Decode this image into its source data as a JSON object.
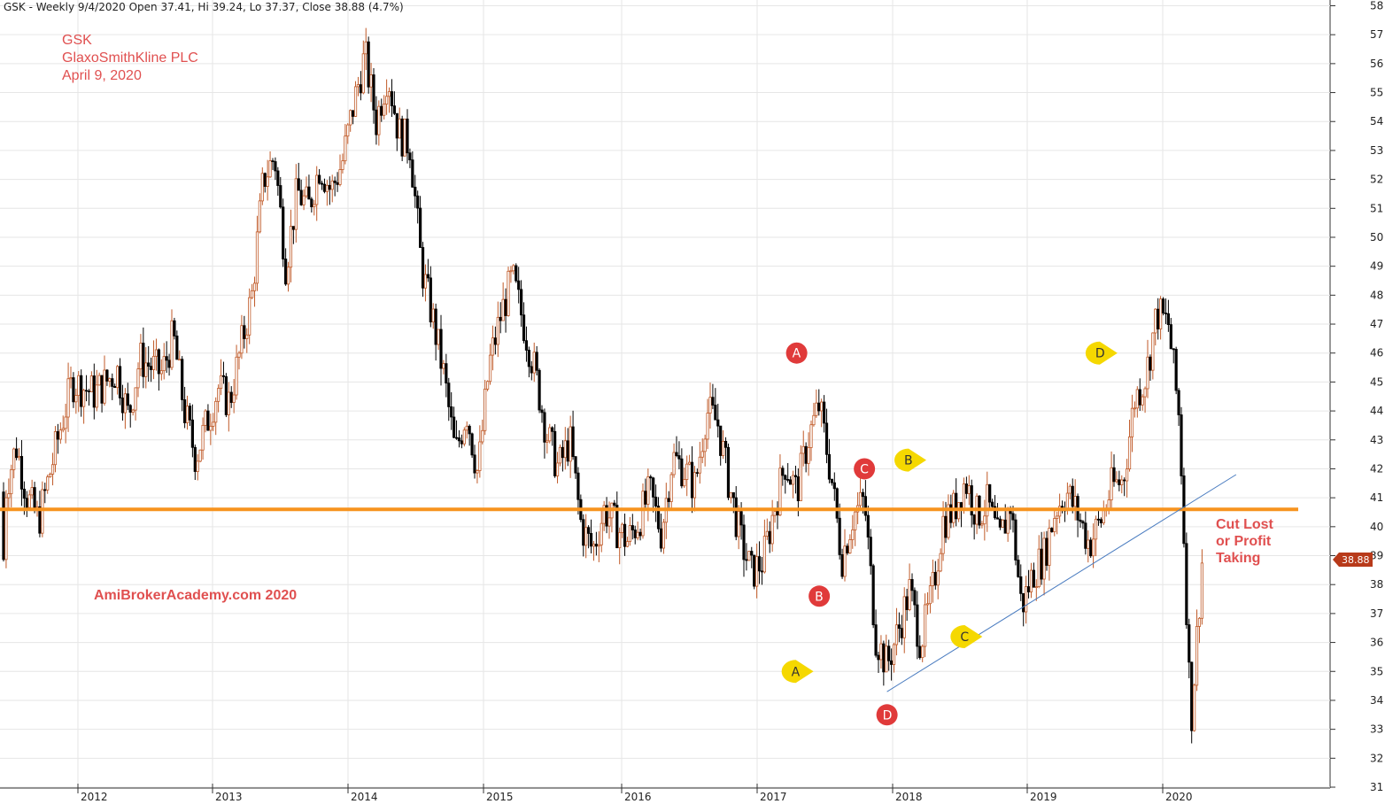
{
  "header": "GSK - Weekly 9/4/2020 Open 37.41, Hi 39.24, Lo 37.37, Close 38.88 (4.7%)",
  "title_lines": [
    "GSK",
    "GlaxoSmithKline PLC",
    "April 9, 2020"
  ],
  "watermark": "AmiBrokerAcademy.com   2020",
  "note_lines": [
    "Cut Lost",
    "or Profit",
    "Taking"
  ],
  "price_label": "38.88",
  "colors": {
    "up": "#c05a28",
    "down": "#000000",
    "support": "#f7931e",
    "trend": "#4a7cc0",
    "red_marker": "#e03a3a",
    "yellow_marker": "#f5d800",
    "price_tag": "#b83a1a"
  },
  "chart_data": {
    "type": "candlestick",
    "timeframe": "weekly",
    "ylim": [
      31,
      58
    ],
    "y_ticks": [
      31,
      32,
      33,
      34,
      35,
      36,
      37,
      38,
      39,
      40,
      41,
      42,
      43,
      44,
      45,
      46,
      47,
      48,
      49,
      50,
      51,
      52,
      53,
      54,
      55,
      56,
      57,
      58
    ],
    "x_ticks": [
      "2012",
      "2013",
      "2014",
      "2015",
      "2016",
      "2017",
      "2018",
      "2019",
      "2020"
    ],
    "grid": true,
    "series": [
      {
        "ohlc_keypoints": [
          [
            "2011-06",
            41.2
          ],
          [
            "2011-07",
            42.8
          ],
          [
            "2011-08",
            41.0
          ],
          [
            "2011-09",
            40.2
          ],
          [
            "2011-11",
            43.5
          ],
          [
            "2011-12",
            45.0
          ],
          [
            "2012-02",
            44.6
          ],
          [
            "2012-04",
            45.4
          ],
          [
            "2012-05",
            43.8
          ],
          [
            "2012-06",
            45.8
          ],
          [
            "2012-08",
            45.3
          ],
          [
            "2012-09",
            46.6
          ],
          [
            "2012-10",
            44.0
          ],
          [
            "2012-11",
            42.4
          ],
          [
            "2013-01",
            44.8
          ],
          [
            "2013-02",
            44.3
          ],
          [
            "2013-04",
            48.0
          ],
          [
            "2013-05",
            52.0
          ],
          [
            "2013-06",
            52.8
          ],
          [
            "2013-07",
            49.0
          ],
          [
            "2013-08",
            51.6
          ],
          [
            "2013-09",
            51.0
          ],
          [
            "2013-10",
            52.5
          ],
          [
            "2013-11",
            51.6
          ],
          [
            "2013-12",
            52.6
          ],
          [
            "2014-01",
            54.6
          ],
          [
            "2014-02",
            56.3
          ],
          [
            "2014-03",
            54.0
          ],
          [
            "2014-04",
            55.7
          ],
          [
            "2014-05",
            53.6
          ],
          [
            "2014-06",
            53.2
          ],
          [
            "2014-07",
            49.0
          ],
          [
            "2014-08",
            47.2
          ],
          [
            "2014-09",
            45.2
          ],
          [
            "2014-10",
            42.5
          ],
          [
            "2014-11",
            44.0
          ],
          [
            "2014-12",
            41.8
          ],
          [
            "2015-01",
            45.6
          ],
          [
            "2015-02",
            47.3
          ],
          [
            "2015-03",
            48.6
          ],
          [
            "2015-04",
            47.0
          ],
          [
            "2015-05",
            45.3
          ],
          [
            "2015-06",
            43.2
          ],
          [
            "2015-07",
            42.0
          ],
          [
            "2015-08",
            43.0
          ],
          [
            "2015-09",
            40.0
          ],
          [
            "2015-10",
            39.2
          ],
          [
            "2015-11",
            40.6
          ],
          [
            "2015-12",
            40.0
          ],
          [
            "2016-01",
            39.5
          ],
          [
            "2016-02",
            40.2
          ],
          [
            "2016-03",
            41.2
          ],
          [
            "2016-04",
            39.8
          ],
          [
            "2016-05",
            42.4
          ],
          [
            "2016-06",
            42.0
          ],
          [
            "2016-07",
            41.4
          ],
          [
            "2016-08",
            44.0
          ],
          [
            "2016-09",
            43.6
          ],
          [
            "2016-10",
            41.5
          ],
          [
            "2016-11",
            39.6
          ],
          [
            "2016-12",
            38.4
          ],
          [
            "2017-01",
            38.8
          ],
          [
            "2017-02",
            40.6
          ],
          [
            "2017-03",
            42.2
          ],
          [
            "2017-04",
            41.2
          ],
          [
            "2017-05",
            43.0
          ],
          [
            "2017-06",
            44.2
          ],
          [
            "2017-07",
            41.9
          ],
          [
            "2017-08",
            38.9
          ],
          [
            "2017-09",
            40.4
          ],
          [
            "2017-10",
            40.9
          ],
          [
            "2017-11",
            36.2
          ],
          [
            "2017-12",
            35.2
          ],
          [
            "2018-01",
            36.4
          ],
          [
            "2018-02",
            37.8
          ],
          [
            "2018-03",
            36.0
          ],
          [
            "2018-04",
            37.6
          ],
          [
            "2018-05",
            40.2
          ],
          [
            "2018-06",
            40.6
          ],
          [
            "2018-07",
            41.6
          ],
          [
            "2018-08",
            40.4
          ],
          [
            "2018-09",
            40.8
          ],
          [
            "2018-10",
            39.4
          ],
          [
            "2018-11",
            40.8
          ],
          [
            "2018-12",
            37.2
          ],
          [
            "2019-01",
            38.4
          ],
          [
            "2019-02",
            39.0
          ],
          [
            "2019-03",
            40.6
          ],
          [
            "2019-04",
            41.2
          ],
          [
            "2019-05",
            40.4
          ],
          [
            "2019-06",
            39.4
          ],
          [
            "2019-07",
            40.2
          ],
          [
            "2019-08",
            41.4
          ],
          [
            "2019-09",
            41.6
          ],
          [
            "2019-10",
            44.4
          ],
          [
            "2019-11",
            45.2
          ],
          [
            "2019-12",
            47.4
          ],
          [
            "2020-01",
            47.0
          ],
          [
            "2020-02",
            43.6
          ],
          [
            "2020-03",
            33.2
          ],
          [
            "2020-04",
            38.88
          ]
        ],
        "last_bar": {
          "date": "9/4/2020",
          "open": 37.41,
          "high": 39.24,
          "low": 37.37,
          "close": 38.88,
          "change_pct": 4.7
        }
      }
    ],
    "support_level": 40.6,
    "trendline": {
      "from": [
        "2017-12",
        34.3
      ],
      "to": [
        "2020-07",
        41.8
      ]
    },
    "annotations": [
      {
        "label": "A",
        "style": "red",
        "date": "2017-04",
        "price": 46.0
      },
      {
        "label": "B",
        "style": "red",
        "date": "2017-06",
        "price": 37.6
      },
      {
        "label": "C",
        "style": "red",
        "date": "2017-10",
        "price": 42.0
      },
      {
        "label": "D",
        "style": "red",
        "date": "2017-12",
        "price": 33.5
      },
      {
        "label": "A",
        "style": "yellow",
        "date": "2017-04",
        "price": 35.0
      },
      {
        "label": "B",
        "style": "yellow",
        "date": "2018-02",
        "price": 42.3
      },
      {
        "label": "C",
        "style": "yellow",
        "date": "2018-07",
        "price": 36.2
      },
      {
        "label": "D",
        "style": "yellow",
        "date": "2019-07",
        "price": 46.0
      }
    ]
  }
}
